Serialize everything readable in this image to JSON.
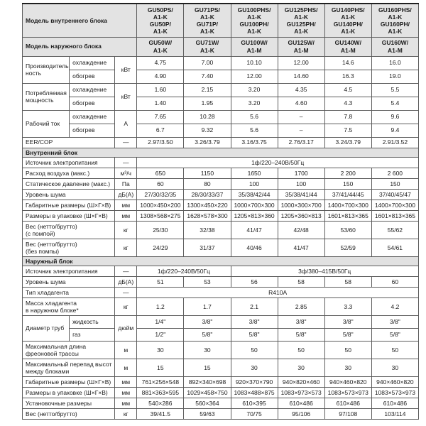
{
  "table": {
    "header": {
      "indoor_label": "Модель внутреннего блока",
      "outdoor_label": "Модель наружного блока",
      "indoor_models": [
        "GU50PS/\nA1-K\nGU50P/\nA1-K",
        "GU71PS/\nA1-K\nGU71P/\nA1-K",
        "GU100PHS/\nA1-K\nGU100PH/\nA1-K",
        "GU125PHS/\nA1-K\nGU125PH/\nA1-K",
        "GU140PHS/\nA1-K\nGU140PH/\nA1-K",
        "GU160PHS/\nA1-K\nGU160PH/\nA1-K"
      ],
      "outdoor_models": [
        "GU50W/\nA1-K",
        "GU71W/\nA1-K",
        "GU100W/\nA1-M",
        "GU125W/\nA1-M",
        "GU140W/\nA1-M",
        "GU160W/\nA1-M"
      ]
    },
    "rows": [
      {
        "kind": "pair",
        "label": "Производитель-\nность",
        "unit": "кВт",
        "subs": [
          "охлаждение",
          "обогрев"
        ],
        "values": [
          [
            "4.75",
            "7.00",
            "10.10",
            "12.00",
            "14.6",
            "16.0"
          ],
          [
            "4.90",
            "7.40",
            "12.00",
            "14.60",
            "16.3",
            "19.0"
          ]
        ]
      },
      {
        "kind": "pair",
        "label": "Потребляемая\nмощность",
        "unit": "кВт",
        "subs": [
          "охлаждение",
          "обогрев"
        ],
        "values": [
          [
            "1.60",
            "2.15",
            "3.20",
            "4.35",
            "4.5",
            "5.5"
          ],
          [
            "1.40",
            "1.95",
            "3.20",
            "4.60",
            "4.3",
            "5.4"
          ]
        ]
      },
      {
        "kind": "pair",
        "label": "Рабочий ток",
        "unit": "А",
        "subs": [
          "охлаждение",
          "обогрев"
        ],
        "values": [
          [
            "7.65",
            "10.28",
            "5.6",
            "–",
            "7.8",
            "9.6"
          ],
          [
            "6.7",
            "9.32",
            "5.6",
            "–",
            "7.5",
            "9.4"
          ]
        ]
      },
      {
        "kind": "simple",
        "label": "EER/COP",
        "unit": "—",
        "values": [
          "2.97/3.50",
          "3.26/3.79",
          "3.16/3.75",
          "2.76/3.17",
          "3.24/3.79",
          "2.91/3.52"
        ]
      },
      {
        "kind": "section",
        "label": "Внутренний блок"
      },
      {
        "kind": "span",
        "label": "Источник электропитания",
        "unit": "—",
        "spans": [
          {
            "text": "1ф/220–240В/50Гц",
            "cols": 6
          }
        ]
      },
      {
        "kind": "simple",
        "label": "Расход воздуха (макс.)",
        "unit": "м³/ч",
        "values": [
          "650",
          "1150",
          "1650",
          "1700",
          "2 200",
          "2 600"
        ]
      },
      {
        "kind": "simple",
        "label": "Статическое давление (макс.)",
        "unit": "Па",
        "values": [
          "60",
          "80",
          "100",
          "100",
          "150",
          "150"
        ]
      },
      {
        "kind": "simple",
        "label": "Уровень шума",
        "unit": "дБ(А)",
        "values": [
          "27/30/32/35",
          "28/30/33/37",
          "35/38/42/44",
          "35/38/41/44",
          "37/41/44/45",
          "37/40/45/47"
        ]
      },
      {
        "kind": "simple",
        "label": "Габаритные размеры (Ш×Г×В)",
        "unit": "мм",
        "values": [
          "1000×450×200",
          "1300×450×220",
          "1000×700×300",
          "1000×300×700",
          "1400×700×300",
          "1400×700×300"
        ]
      },
      {
        "kind": "simple",
        "label": "Размеры в упаковке (Ш×Г×В)",
        "unit": "мм",
        "values": [
          "1308×568×275",
          "1628×578×300",
          "1205×813×360",
          "1205×360×813",
          "1601×813×365",
          "1601×813×365"
        ]
      },
      {
        "kind": "simple2",
        "label": "Вес (нетто/брутто)\n(с помпой)",
        "unit": "кг",
        "values": [
          "25/30",
          "32/38",
          "41/47",
          "42/48",
          "53/60",
          "55/62"
        ]
      },
      {
        "kind": "simple2",
        "label": "Вес (нетто/брутто)\n(без помпы)",
        "unit": "кг",
        "values": [
          "24/29",
          "31/37",
          "40/46",
          "41/47",
          "52/59",
          "54/61"
        ]
      },
      {
        "kind": "section",
        "label": "Наружный блок"
      },
      {
        "kind": "span",
        "label": "Источник электропитания",
        "unit": "—",
        "spans": [
          {
            "text": "1ф/220–240В/50Гц",
            "cols": 2
          },
          {
            "text": "3ф/380–415В/50Гц",
            "cols": 4
          }
        ]
      },
      {
        "kind": "simple",
        "label": "Уровень шума",
        "unit": "дБ(А)",
        "values": [
          "51",
          "53",
          "56",
          "58",
          "58",
          "60"
        ]
      },
      {
        "kind": "span",
        "label": "Тип хладагента",
        "unit": "—",
        "spans": [
          {
            "text": "R410A",
            "cols": 6
          }
        ]
      },
      {
        "kind": "simple2",
        "label": "Масса хладагента\nв наружном блоке*",
        "unit": "кг",
        "values": [
          "1.2",
          "1.7",
          "2.1",
          "2.85",
          "3.3",
          "4.2"
        ]
      },
      {
        "kind": "pipe",
        "label": "Диаметр труб",
        "unit": "дюйм",
        "subs": [
          "жидкость",
          "газ"
        ],
        "values": [
          [
            "1/4\"",
            "3/8\"",
            "3/8\"",
            "3/8\"",
            "3/8\"",
            "3/8\""
          ],
          [
            "1/2\"",
            "5/8\"",
            "5/8\"",
            "5/8\"",
            "5/8\"",
            "5/8\""
          ]
        ]
      },
      {
        "kind": "simple2",
        "label": "Максимальная длина\nфреоновой трассы",
        "unit": "м",
        "values": [
          "30",
          "30",
          "50",
          "50",
          "50",
          "50"
        ]
      },
      {
        "kind": "simple2",
        "label": "Максимальный перепад высот\nмежду блоками",
        "unit": "м",
        "values": [
          "15",
          "15",
          "30",
          "30",
          "30",
          "30"
        ]
      },
      {
        "kind": "simple",
        "label": "Габаритные размеры (Ш×Г×В)",
        "unit": "мм",
        "values": [
          "761×256×548",
          "892×340×698",
          "920×370×790",
          "940×820×460",
          "940×460×820",
          "940×460×820"
        ]
      },
      {
        "kind": "simple",
        "label": "Размеры в упаковке (Ш×Г×В)",
        "unit": "мм",
        "values": [
          "881×363×595",
          "1029×458×750",
          "1083×488×875",
          "1083×973×573",
          "1083×573×973",
          "1083×573×973"
        ]
      },
      {
        "kind": "simple",
        "label": "Установочные размеры",
        "unit": "мм",
        "values": [
          "540×286",
          "560×364",
          "610×395",
          "610×486",
          "610×486",
          "610×486"
        ]
      },
      {
        "kind": "simple",
        "label": "Вес (нетто/брутто)",
        "unit": "кг",
        "values": [
          "39/41.5",
          "59/63",
          "70/75",
          "95/106",
          "97/108",
          "103/114"
        ]
      }
    ]
  }
}
